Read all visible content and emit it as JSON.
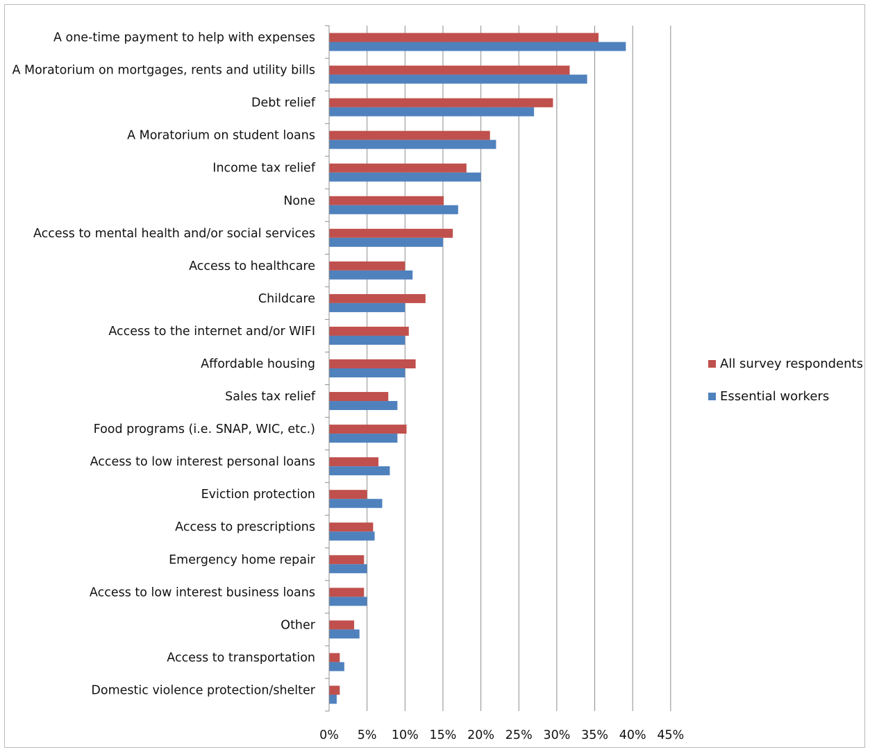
{
  "chart_data": {
    "type": "bar",
    "orientation": "horizontal",
    "categories": [
      "A one-time payment to help with expenses",
      "A Moratorium on mortgages, rents and utility bills",
      "Debt relief",
      "A Moratorium on student loans",
      "Income tax relief",
      "None",
      "Access to mental health and/or social services",
      "Access to healthcare",
      "Childcare",
      "Access to the internet and/or WIFI",
      "Affordable housing",
      "Sales tax relief",
      "Food programs (i.e. SNAP, WIC, etc.)",
      "Access to low interest personal loans",
      "Eviction protection",
      "Access to prescriptions",
      "Emergency home repair",
      "Access to low interest business loans",
      "Other",
      "Access to transportation",
      "Domestic violence protection/shelter"
    ],
    "series": [
      {
        "name": "All survey respondents",
        "color": "#c0504d",
        "values": [
          35.5,
          31.7,
          29.5,
          21.2,
          18.1,
          15.1,
          16.3,
          10.0,
          12.7,
          10.5,
          11.4,
          7.8,
          10.2,
          6.5,
          5.0,
          5.8,
          4.6,
          4.6,
          3.3,
          1.4,
          1.4
        ]
      },
      {
        "name": "Essential workers",
        "color": "#4f81bd",
        "values": [
          39.1,
          34.0,
          27.0,
          22.0,
          20.0,
          17.0,
          15.0,
          11.0,
          10.0,
          10.0,
          10.0,
          9.0,
          9.0,
          8.0,
          7.0,
          6.0,
          5.0,
          5.0,
          4.0,
          2.0,
          1.0
        ]
      }
    ],
    "xlim": [
      0,
      45
    ],
    "xticks": [
      "0%",
      "5%",
      "10%",
      "15%",
      "20%",
      "25%",
      "30%",
      "35%",
      "40%",
      "45%"
    ],
    "xlabel": "",
    "ylabel": "",
    "title": "",
    "grid": true,
    "legend_position": "right"
  }
}
